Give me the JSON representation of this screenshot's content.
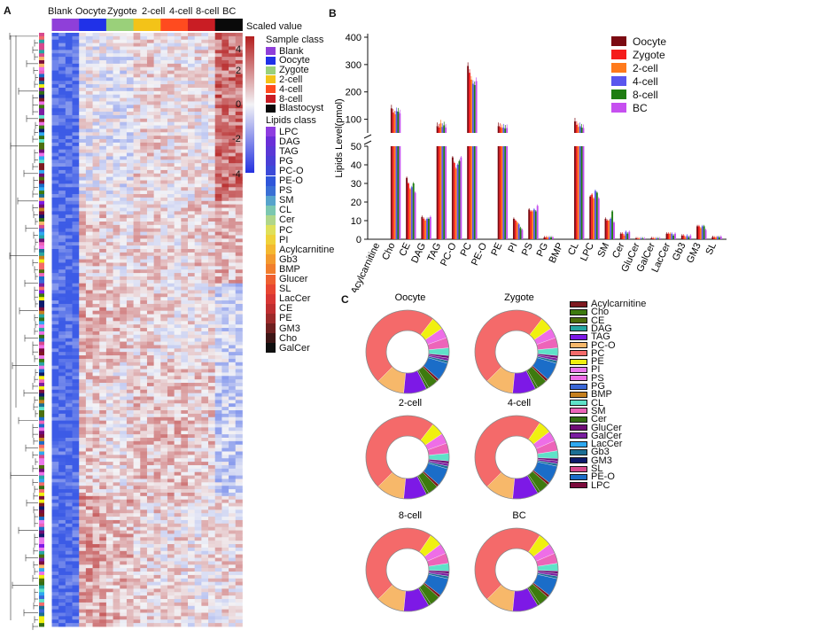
{
  "panel_labels": {
    "a": "A",
    "b": "B",
    "c": "C"
  },
  "colors": {
    "samples": {
      "Blank": "#8f3fd9",
      "Oocyte": "#2031e8",
      "Zygote": "#9ad07a",
      "2-cell": "#f3c318",
      "4-cell": "#ff4b1f",
      "8-cell": "#c91d24",
      "BC": "#0a0a0a"
    },
    "bars": [
      "#7b0a12",
      "#f51c1c",
      "#ff7a1c",
      "#5a56ee",
      "#1e7d12",
      "#c64ff0"
    ],
    "heat_low": "#3c5be6",
    "heat_mid": "#f3f3f6",
    "heat_high": "#b41e1e",
    "lipids": [
      "#7e1a20",
      "#3d7a0e",
      "#4d6e0d",
      "#27a6a3",
      "#7d19e6",
      "#f7b86a",
      "#f46a6a",
      "#f0f010",
      "#ea78eb",
      "#ee6ee7",
      "#3a67d8",
      "#c6801f",
      "#5fe2c8",
      "#ed64b9",
      "#356f13",
      "#6f0d76",
      "#7a1ea0",
      "#2ea8f0",
      "#1b6e94",
      "#0d1a6b",
      "#d74a8e",
      "#1b6dc8",
      "#7c0b3c"
    ]
  },
  "chart_data": [
    {
      "type": "heatmap",
      "id": "A",
      "columns": [
        "Blank",
        "Oocyte",
        "Zygote",
        "2-cell",
        "4-cell",
        "8-cell",
        "BC"
      ],
      "colorbar_title": "Scaled value",
      "colorbar_ticks": [
        "4",
        "2",
        "0",
        "-2",
        "-4"
      ],
      "color_range": [
        -4,
        4
      ],
      "sample_class_title": "Sample class",
      "sample_classes": [
        "Blank",
        "Oocyte",
        "Zygote",
        "2-cell",
        "4-cell",
        "8-cell",
        "Blastocyst"
      ],
      "lipids_class_title": "Lipids class",
      "lipid_classes": [
        "LPC",
        "DAG",
        "TAG",
        "PG",
        "PC-O",
        "PE-O",
        "PS",
        "SM",
        "CL",
        "Cer",
        "PC",
        "PI",
        "Acylcarnitine",
        "Gb3",
        "BMP",
        "Glucer",
        "SL",
        "LacCer",
        "CE",
        "PE",
        "GM3",
        "Cho",
        "GalCer"
      ]
    },
    {
      "type": "bar",
      "id": "B",
      "ylabel": "Lipids Level(pmol)",
      "series_names": [
        "Oocyte",
        "Zygote",
        "2-cell",
        "4-cell",
        "8-cell",
        "BC"
      ],
      "categories": [
        "Acylcarnitine",
        "Cho",
        "CE",
        "DAG",
        "TAG",
        "PC-O",
        "PC",
        "PE-O",
        "PE",
        "PI",
        "PS",
        "PG",
        "BMP",
        "CL",
        "LPC",
        "SM",
        "Cer",
        "GluCer",
        "GalCer",
        "LacCer",
        "Gb3",
        "GM3",
        "SL"
      ],
      "upper_ylim": [
        50,
        400
      ],
      "upper_ticks": [
        100,
        200,
        300,
        400
      ],
      "lower_ylim": [
        0,
        50
      ],
      "lower_ticks": [
        0,
        10,
        20,
        30,
        40,
        50
      ],
      "values": [
        [
          0,
          0,
          0,
          0,
          0,
          0
        ],
        [
          140,
          125,
          118,
          130,
          128,
          122
        ],
        [
          33,
          30,
          27,
          28,
          30,
          25
        ],
        [
          12,
          11,
          10,
          11,
          11,
          12
        ],
        [
          75,
          70,
          85,
          72,
          78,
          70
        ],
        [
          44,
          41,
          38,
          40,
          42,
          44
        ],
        [
          295,
          270,
          245,
          230,
          225,
          240
        ],
        [
          0,
          0,
          0,
          0,
          0,
          0
        ],
        [
          75,
          72,
          68,
          70,
          66,
          68
        ],
        [
          11,
          10,
          9,
          8,
          6,
          5
        ],
        [
          16,
          15,
          15,
          16,
          15,
          18
        ],
        [
          1,
          1,
          1,
          1,
          1,
          1
        ],
        [
          0,
          0,
          0,
          0,
          0,
          0
        ],
        [
          92,
          80,
          72,
          75,
          70,
          68
        ],
        [
          23,
          24,
          22,
          26,
          25,
          22
        ],
        [
          11,
          10,
          10,
          11,
          15,
          9
        ],
        [
          3,
          3,
          2,
          4,
          3,
          4
        ],
        [
          0.5,
          0.4,
          0.3,
          0.5,
          0.4,
          0.4
        ],
        [
          0.6,
          0.5,
          0.4,
          0.5,
          0.4,
          0.5
        ],
        [
          3,
          3,
          3,
          3,
          2,
          3
        ],
        [
          2,
          2,
          1,
          2,
          1,
          2
        ],
        [
          7,
          7,
          6,
          7,
          7,
          5
        ],
        [
          1.2,
          1,
          1,
          1.2,
          1,
          1.4
        ]
      ]
    },
    {
      "type": "pie",
      "id": "C",
      "donut_titles": [
        "Oocyte",
        "Zygote",
        "2-cell",
        "4-cell",
        "8-cell",
        "BC"
      ],
      "legend": [
        "Acylcarnitine",
        "Cho",
        "CE",
        "DAG",
        "TAG",
        "PC-O",
        "PC",
        "PE",
        "PI",
        "PS",
        "PG",
        "BMP",
        "CL",
        "SM",
        "Cer",
        "GluCer",
        "GalCer",
        "LacCer",
        "Gb3",
        "GM3",
        "SL",
        "PE-O",
        "LPC"
      ],
      "segments_order": [
        "PC",
        "PE",
        "PS",
        "SM",
        "CL",
        "GluCer",
        "GalCer",
        "Gb3",
        "PE-O",
        "Acylcarnitine",
        "Cho",
        "Cer",
        "TAG",
        "PC-O"
      ],
      "values": [
        [
          48,
          5,
          4,
          4,
          3,
          1,
          1,
          1,
          7,
          1,
          4,
          1,
          9,
          11
        ],
        [
          48,
          5,
          4,
          4,
          3,
          1,
          1,
          1,
          7,
          1,
          4,
          1,
          9,
          11
        ],
        [
          48,
          5,
          4,
          4,
          3,
          1,
          1,
          1,
          7,
          1,
          4,
          1,
          9,
          11
        ],
        [
          47,
          5,
          4,
          4,
          3,
          1,
          1,
          1,
          7,
          1,
          4,
          1,
          10,
          11
        ],
        [
          47,
          5,
          4,
          4,
          3,
          1,
          1,
          1,
          7,
          1,
          4,
          1,
          10,
          11
        ],
        [
          47,
          5,
          4,
          4,
          3,
          1,
          1,
          1,
          7,
          1,
          4,
          1,
          10,
          11
        ]
      ]
    }
  ]
}
